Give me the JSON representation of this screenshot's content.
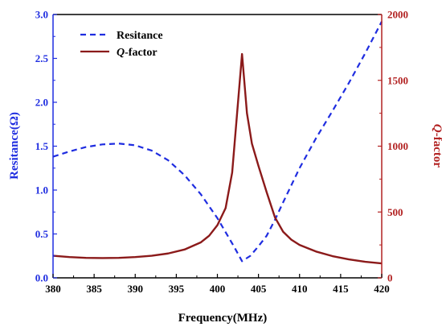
{
  "chart_data": {
    "type": "line",
    "title": "",
    "xlabel": "Frequency(MHz)",
    "xlim": [
      380,
      420
    ],
    "x_ticks": [
      "380",
      "385",
      "390",
      "395",
      "400",
      "405",
      "410",
      "415",
      "420"
    ],
    "x_tick_values": [
      380,
      385,
      390,
      395,
      400,
      405,
      410,
      415,
      420
    ],
    "ylabel_left": "Resitance(Ω)",
    "ylim_left": [
      0,
      3.0
    ],
    "y_left_ticks": [
      "0.0",
      "0.5",
      "1.0",
      "1.5",
      "2.0",
      "2.5",
      "3.0"
    ],
    "y_left_tick_values": [
      0,
      0.5,
      1.0,
      1.5,
      2.0,
      2.5,
      3.0
    ],
    "ylabel_right_italic": "Q",
    "ylabel_right_rest": "-factor",
    "ylim_right": [
      0,
      2000
    ],
    "y_right_ticks": [
      "0",
      "500",
      "1000",
      "1500",
      "2000"
    ],
    "y_right_tick_values": [
      0,
      500,
      1000,
      1500,
      2000
    ],
    "legend_position": "top-left",
    "grid": false,
    "colors": {
      "left_axis": "#1f2de0",
      "right_axis": "#b22222",
      "resistance_line": "#1f2de0",
      "q_line": "#8b1a1a"
    },
    "series": [
      {
        "name": "Resitance",
        "axis": "left",
        "style": "dashed",
        "x": [
          380,
          382,
          384,
          386,
          388,
          390,
          392,
          394,
          396,
          398,
          400,
          401,
          402,
          403,
          404,
          405,
          406,
          407,
          408,
          410,
          412,
          414,
          416,
          418,
          420
        ],
        "y": [
          1.38,
          1.44,
          1.49,
          1.52,
          1.53,
          1.51,
          1.45,
          1.34,
          1.17,
          0.95,
          0.68,
          0.52,
          0.36,
          0.19,
          0.25,
          0.36,
          0.48,
          0.66,
          0.86,
          1.25,
          1.59,
          1.9,
          2.22,
          2.56,
          2.92
        ]
      },
      {
        "name_italic": "Q",
        "name_rest": "-factor",
        "axis": "right",
        "style": "solid",
        "x": [
          380,
          382,
          384,
          386,
          388,
          390,
          392,
          394,
          396,
          398,
          399,
          400,
          401,
          401.8,
          402.4,
          403,
          403.6,
          404.2,
          405,
          406,
          407,
          408,
          409,
          410,
          412,
          414,
          416,
          418,
          420
        ],
        "y": [
          168,
          158,
          152,
          150,
          152,
          158,
          168,
          185,
          215,
          270,
          320,
          400,
          530,
          800,
          1250,
          1700,
          1250,
          1020,
          850,
          650,
          460,
          350,
          290,
          250,
          200,
          165,
          140,
          122,
          110
        ]
      }
    ]
  }
}
